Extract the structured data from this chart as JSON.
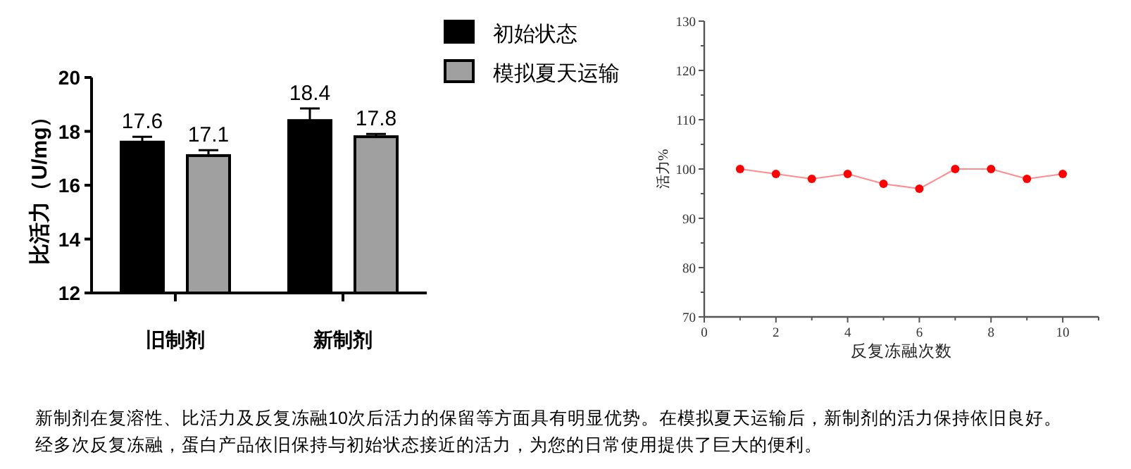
{
  "chart_data": [
    {
      "type": "bar",
      "ylabel": "比活力（U/mg）",
      "categories": [
        "旧制剂",
        "新制剂"
      ],
      "series": [
        {
          "name": "初始状态",
          "color": "#000000",
          "values": [
            17.6,
            18.4
          ],
          "errors": [
            [
              17.6,
              17.8
            ],
            [
              18.4,
              18.85
            ]
          ]
        },
        {
          "name": "模拟夏天运输",
          "color": "#a0a0a0",
          "values": [
            17.1,
            17.8
          ],
          "errors": [
            [
              17.1,
              17.3
            ],
            [
              17.8,
              17.9
            ]
          ]
        }
      ],
      "ylim": [
        12,
        20
      ],
      "yticks": [
        12,
        14,
        16,
        18,
        20
      ],
      "data_labels": true,
      "legend": "top right",
      "grid": false,
      "annotations": [
        "新制剂在复溶性、比活力及反复冻融10次后活力的保留等方面具有明显优势。在模拟夏天运输后，新制剂的活力保持依旧良好。",
        "经多次反复冻融，蛋白产品依旧保持与初始状态接近的活力，为您的日常使用提供了巨大的便利。"
      ]
    },
    {
      "type": "line",
      "xlabel": "反复冻融次数",
      "ylabel": "活力%",
      "x": [
        1,
        2,
        3,
        4,
        5,
        6,
        7,
        8,
        9,
        10
      ],
      "series": [
        {
          "color": "#ff0000",
          "values": [
            100,
            99,
            98,
            99,
            97,
            96,
            100,
            100,
            98,
            99
          ]
        }
      ],
      "xlim": [
        0,
        11
      ],
      "xticks": [
        0,
        {
          "value": 1,
          "label": null
        },
        2,
        {
          "value": 3,
          "label": null
        },
        4,
        {
          "value": 5,
          "label": null
        },
        6,
        {
          "value": 7,
          "label": null
        },
        8,
        {
          "value": 9,
          "label": null
        },
        10,
        {
          "value": 11,
          "label": null
        }
      ],
      "ylim": [
        70,
        130
      ],
      "yticks": [
        70,
        {
          "value": 75,
          "label": null
        },
        80,
        {
          "value": 85,
          "label": null
        },
        90,
        {
          "value": 95,
          "label": null
        },
        100,
        {
          "value": 105,
          "label": null
        },
        110,
        {
          "value": 115,
          "label": null
        },
        120,
        {
          "value": 125,
          "label": null
        },
        130
      ],
      "marker": "circle",
      "line_style": "solid",
      "grid": false
    }
  ]
}
